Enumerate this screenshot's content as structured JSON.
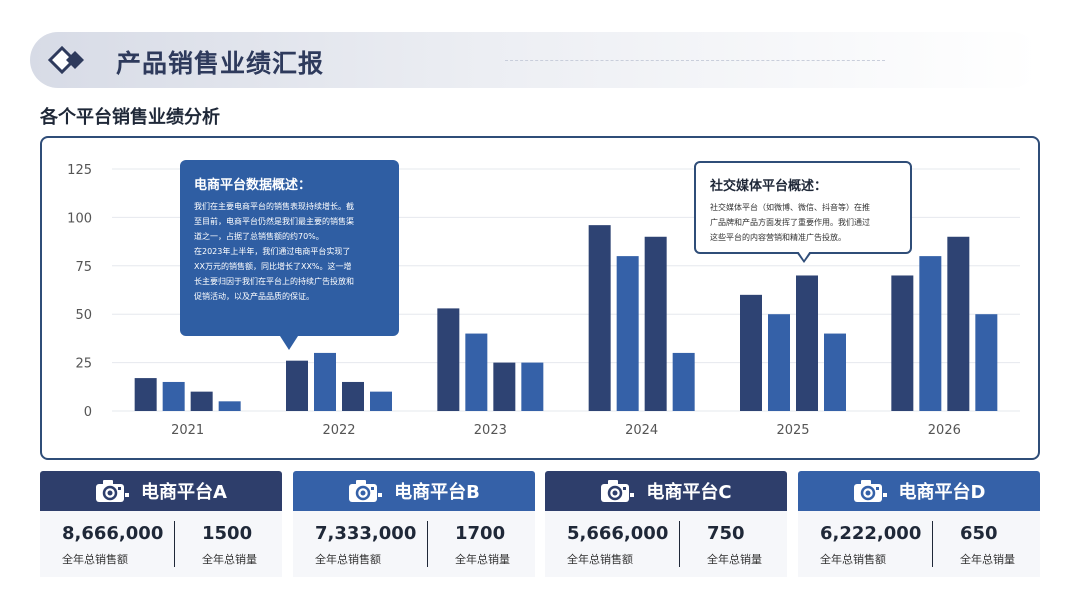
{
  "header": {
    "title": "产品销售业绩汇报"
  },
  "section": {
    "subtitle": "各个平台销售业绩分析"
  },
  "colors": {
    "dark": "#2e4373",
    "mid": "#3561a8",
    "accent": "#2f5ea3",
    "grid": "#e6e8ee"
  },
  "chart_data": {
    "type": "bar",
    "categories": [
      "2021",
      "2022",
      "2023",
      "2024",
      "2025",
      "2026"
    ],
    "series": [
      {
        "name": "",
        "values": [
          17,
          26,
          53,
          96,
          60,
          70
        ]
      },
      {
        "name": "",
        "values": [
          15,
          30,
          40,
          80,
          50,
          80
        ]
      },
      {
        "name": "",
        "values": [
          10,
          15,
          25,
          90,
          70,
          90
        ]
      },
      {
        "name": "",
        "values": [
          5,
          10,
          25,
          30,
          40,
          50
        ]
      }
    ],
    "yticks": [
      0,
      25,
      50,
      75,
      100,
      125
    ],
    "ylim": [
      0,
      125
    ],
    "grid": true,
    "title": "",
    "xlabel": "",
    "ylabel": ""
  },
  "callouts": {
    "ecommerce": {
      "title": "电商平台数据概述：",
      "lines": [
        "我们在主要电商平台的销售表现持续增长。截",
        "至目前，电商平台仍然是我们最主要的销售渠",
        "道之一，占据了总销售额的约70%。",
        "在2023年上半年，我们通过电商平台实现了",
        "XX万元的销售额，同比增长了XX%。这一增",
        "长主要归因于我们在平台上的持续广告投放和",
        "促销活动，以及产品品质的保证。"
      ]
    },
    "social": {
      "title": "社交媒体平台概述：",
      "lines": [
        "社交媒体平台（如微博、微信、抖音等）在推",
        "广品牌和产品方面发挥了重要作用。我们通过",
        "这些平台的内容营销和精准广告投放。"
      ]
    }
  },
  "cards": [
    {
      "name": "电商平台A",
      "sales": "8,666,000",
      "sales_label": "全年总销售额",
      "volume": "1500",
      "volume_label": "全年总销量",
      "head_color": "#2e3e6b"
    },
    {
      "name": "电商平台B",
      "sales": "7,333,000",
      "sales_label": "全年总销售额",
      "volume": "1700",
      "volume_label": "全年总销量",
      "head_color": "#3561a8"
    },
    {
      "name": "电商平台C",
      "sales": "5,666,000",
      "sales_label": "全年总销售额",
      "volume": "750",
      "volume_label": "全年总销量",
      "head_color": "#2e3e6b"
    },
    {
      "name": "电商平台D",
      "sales": "6,222,000",
      "sales_label": "全年总销售额",
      "volume": "650",
      "volume_label": "全年总销量",
      "head_color": "#3561a8"
    }
  ]
}
